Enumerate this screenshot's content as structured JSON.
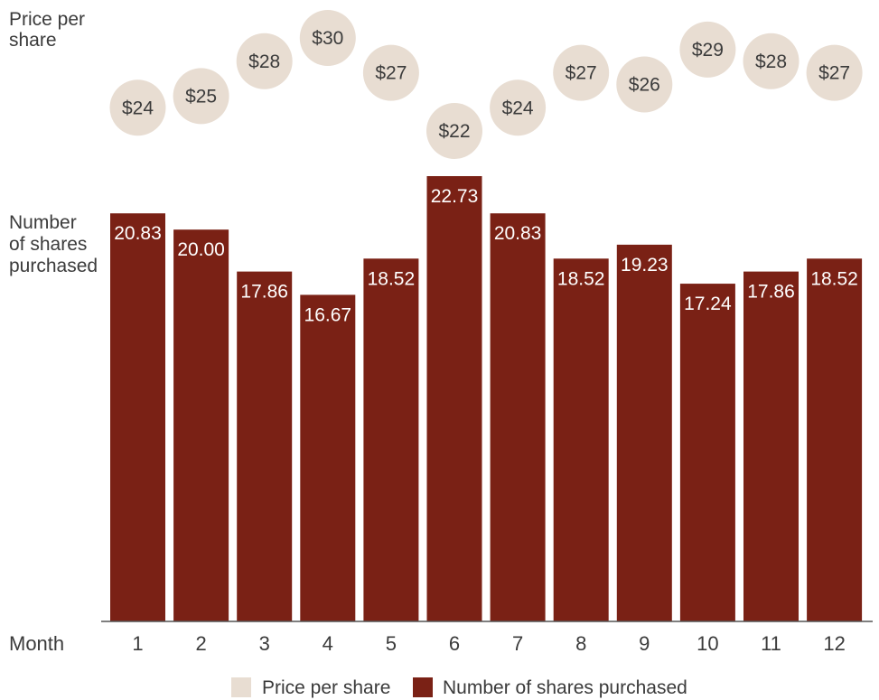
{
  "chart_data": {
    "type": "bar",
    "xlabel": "Month",
    "categories": [
      "1",
      "2",
      "3",
      "4",
      "5",
      "6",
      "7",
      "8",
      "9",
      "10",
      "11",
      "12"
    ],
    "price_label_lines": [
      "Price per",
      "share"
    ],
    "shares_label_lines": [
      "Number",
      "of shares",
      "purchased"
    ],
    "prices": [
      24,
      25,
      28,
      30,
      27,
      22,
      24,
      27,
      26,
      29,
      28,
      27
    ],
    "price_labels": [
      "$24",
      "$25",
      "$28",
      "$30",
      "$27",
      "$22",
      "$24",
      "$27",
      "$26",
      "$29",
      "$28",
      "$27"
    ],
    "shares": [
      20.83,
      20.0,
      17.86,
      16.67,
      18.52,
      22.73,
      20.83,
      18.52,
      19.23,
      17.24,
      17.86,
      18.52
    ],
    "share_labels": [
      "20.83",
      "20.00",
      "17.86",
      "16.67",
      "18.52",
      "22.73",
      "20.83",
      "18.52",
      "19.23",
      "17.24",
      "17.86",
      "18.52"
    ],
    "ylim": [
      0,
      22.73
    ],
    "grid": false,
    "legend_position": "bottom-center",
    "series": [
      {
        "name": "Price per share",
        "color": "#e8ddd2"
      },
      {
        "name": "Number of shares purchased",
        "color": "#7a2115"
      }
    ]
  }
}
